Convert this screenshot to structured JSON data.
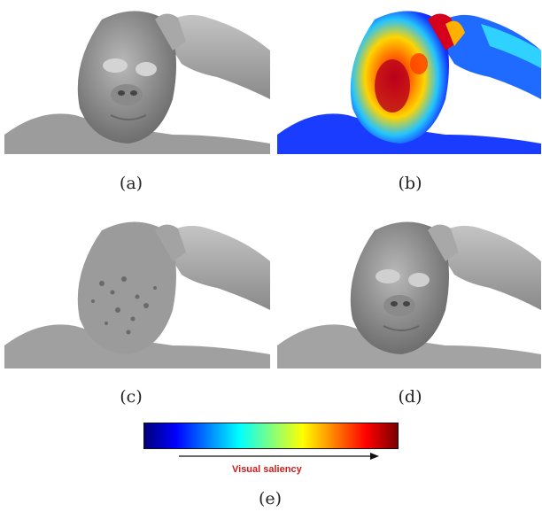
{
  "captions": {
    "a": "(a)",
    "b": "(b)",
    "c": "(c)",
    "d": "(d)",
    "e": "(e)"
  },
  "colorbar": {
    "label": "Visual saliency",
    "label_color": "#d11b1b",
    "colors": [
      "#00007a",
      "#0000ff",
      "#0080ff",
      "#00ffff",
      "#80ff80",
      "#ffff00",
      "#ff8000",
      "#ff0000",
      "#7a0000"
    ]
  },
  "panels": {
    "a": "original mesh",
    "b": "saliency map",
    "c": "noisy mesh",
    "d": "denoised mesh"
  }
}
